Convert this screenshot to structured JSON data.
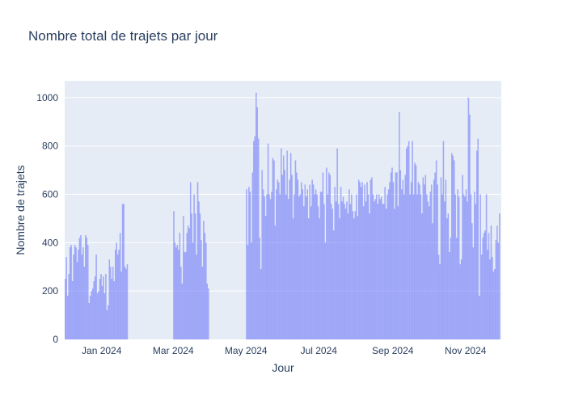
{
  "chart_data": {
    "type": "bar",
    "title": "Nombre total de trajets par jour",
    "xlabel": "Jour",
    "ylabel": "Nombre de trajets",
    "x_range": [
      "2023-12-01",
      "2024-11-30"
    ],
    "ylim": [
      0,
      1070
    ],
    "y_ticks": [
      0,
      200,
      400,
      600,
      800,
      1000
    ],
    "x_ticks": [
      {
        "date": "2024-01-01",
        "label": "Jan 2024"
      },
      {
        "date": "2024-03-01",
        "label": "Mar 2024"
      },
      {
        "date": "2024-05-01",
        "label": "May 2024"
      },
      {
        "date": "2024-07-01",
        "label": "Jul 2024"
      },
      {
        "date": "2024-09-01",
        "label": "Sep 2024"
      },
      {
        "date": "2024-11-01",
        "label": "Nov 2024"
      }
    ],
    "grid": true,
    "colors": {
      "bar": "#636efa",
      "plot_bg": "#e5ecf6",
      "grid": "#ffffff",
      "text": "#2a3f5f"
    },
    "series": [
      {
        "segments": [
          {
            "start": "2023-12-01",
            "values": [
              250,
              340,
              180,
              270,
              380,
              390,
              240,
              350,
              390,
              380,
              320,
              370,
              420,
              430,
              350,
              380,
              300,
              430,
              420,
              390,
              150,
              180,
              200,
              210,
              240,
              260,
              350,
              190,
              200,
              250,
              270,
              220,
              260,
              190,
              270,
              120,
              140,
              330,
              300,
              250,
              300,
              240,
              370,
              400,
              350,
              370,
              440,
              280,
              560,
              560,
              300,
              290,
              310
            ]
          },
          {
            "start": "2024-03-01",
            "values": [
              530,
              400,
              380,
              390,
              370,
              440,
              300,
              230,
              510,
              360,
              360,
              440,
              470,
              460,
              650,
              520,
              400,
              600,
              520,
              350,
              650,
              570,
              520,
              410,
              300,
              490,
              440,
              400,
              230,
              210
            ]
          },
          {
            "start": "2024-05-01",
            "values": [
              620,
              390,
              630,
              610,
              400,
              690,
              820,
              840,
              1020,
              960,
              830,
              420,
              290,
              700,
              620,
              590,
              510,
              600,
              810,
              600,
              580,
              610,
              750,
              740,
              470,
              620,
              660,
              650,
              600,
              790,
              680,
              760,
              700,
              600,
              780,
              580,
              660,
              770,
              680,
              500,
              600,
              740,
              690,
              660,
              590,
              600,
              650,
              620,
              550,
              640,
              590,
              620,
              500,
              640,
              550,
              660,
              640,
              600,
              620,
              600,
              550,
              500,
              610,
              610,
              690,
              560,
              400,
              710,
              600,
              690,
              680,
              560,
              540,
              450,
              630,
              570,
              790,
              560,
              500,
              630,
              570,
              590,
              560,
              540,
              570,
              520,
              620,
              560,
              600,
              530,
              500,
              530,
              600,
              510,
              660,
              650,
              630,
              650,
              550,
              640,
              570,
              650,
              600,
              520,
              660,
              670,
              600,
              570,
              580,
              600,
              560,
              600,
              580,
              590,
              560,
              560,
              630,
              540,
              600,
              620,
              650,
              690,
              710,
              650,
              540,
              690,
              690,
              550,
              940,
              700,
              620,
              660,
              600,
              680,
              790,
              800,
              820,
              600,
              650,
              820,
              600,
              730,
              720,
              600,
              650,
              640,
              600,
              520,
              670,
              640,
              680,
              600,
              570,
              550,
              610,
              640,
              480,
              660,
              690,
              740,
              640,
              350,
              310,
              670,
              600,
              820,
              570,
              660,
              500,
              520,
              360,
              420,
              770,
              760,
              740,
              600,
              420,
              620,
              590,
              310,
              330,
              680,
              600,
              590,
              620,
              570,
              1000,
              930,
              600,
              480,
              380,
              610,
              560,
              780,
              830,
              180,
              600,
              350,
              420,
              440,
              450,
              600,
              370,
              440,
              330,
              470,
              340,
              280,
              290,
              410,
              470,
              400,
              520
            ]
          }
        ]
      }
    ]
  }
}
